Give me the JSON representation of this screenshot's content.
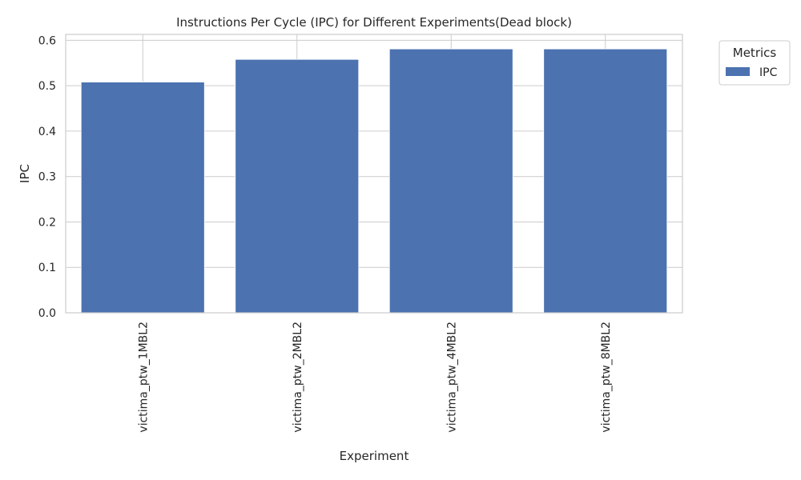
{
  "chart_data": {
    "type": "bar",
    "title": "Instructions Per Cycle (IPC) for Different Experiments(Dead block)",
    "xlabel": "Experiment",
    "ylabel": "IPC",
    "categories": [
      "victima_ptw_1MBL2",
      "victima_ptw_2MBL2",
      "victima_ptw_4MBL2",
      "victima_ptw_8MBL2"
    ],
    "series": [
      {
        "name": "IPC",
        "values": [
          0.508,
          0.558,
          0.581,
          0.581
        ],
        "color": "#4c72b0"
      }
    ],
    "ylim": [
      0,
      0.613
    ],
    "yticks": [
      0.0,
      0.1,
      0.2,
      0.3,
      0.4,
      0.5,
      0.6
    ],
    "ytick_labels": [
      "0.0",
      "0.1",
      "0.2",
      "0.3",
      "0.4",
      "0.5",
      "0.6"
    ],
    "grid": true,
    "legend": {
      "title": "Metrics",
      "placement": "outside-top-right"
    }
  }
}
